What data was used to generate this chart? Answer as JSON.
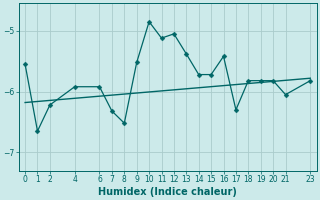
{
  "xlabel": "Humidex (Indice chaleur)",
  "bg_color": "#cceaea",
  "grid_color": "#aacccc",
  "line_color": "#006666",
  "xlim": [
    -0.5,
    23.5
  ],
  "ylim": [
    -7.3,
    -4.55
  ],
  "yticks": [
    -7,
    -6,
    -5
  ],
  "xticks": [
    0,
    1,
    2,
    4,
    6,
    7,
    8,
    9,
    10,
    11,
    12,
    13,
    14,
    15,
    16,
    17,
    18,
    19,
    20,
    21,
    23
  ],
  "curve_x": [
    0,
    1,
    2,
    4,
    6,
    7,
    8,
    9,
    10,
    11,
    12,
    13,
    14,
    15,
    16,
    17,
    18,
    19,
    20,
    21,
    23
  ],
  "curve_y": [
    -5.55,
    -6.65,
    -6.22,
    -5.92,
    -5.92,
    -6.32,
    -6.52,
    -5.52,
    -4.85,
    -5.12,
    -5.05,
    -5.38,
    -5.72,
    -5.72,
    -5.42,
    -6.3,
    -5.82,
    -5.82,
    -5.82,
    -6.05,
    -5.82
  ],
  "trend_x": [
    0,
    23
  ],
  "trend_y": [
    -6.18,
    -5.78
  ],
  "marker_size": 2.5,
  "line_width": 1.0,
  "tick_fontsize": 5.5,
  "xlabel_fontsize": 7
}
